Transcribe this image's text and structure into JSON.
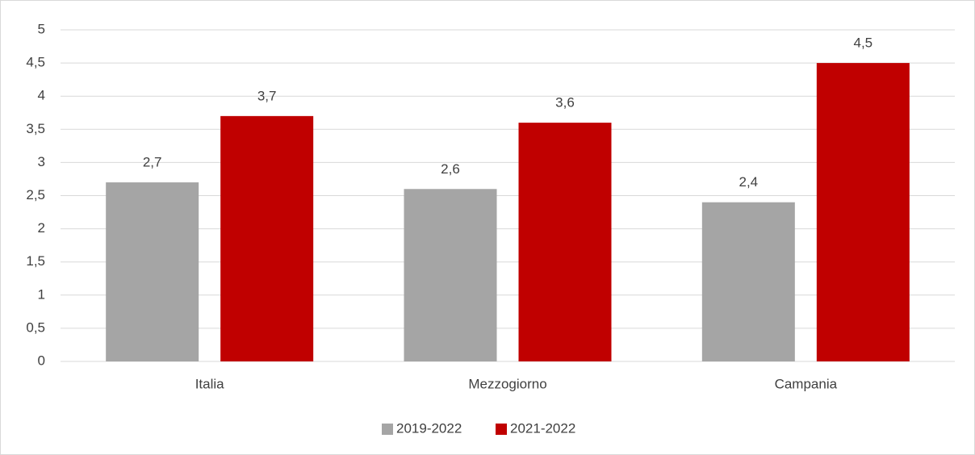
{
  "chart_data": {
    "type": "bar",
    "categories": [
      "Italia",
      "Mezzogiorno",
      "Campania"
    ],
    "series": [
      {
        "name": "2019-2022",
        "color": "#a5a5a5",
        "values": [
          2.7,
          2.6,
          2.4
        ],
        "value_labels": [
          "2,7",
          "2,6",
          "2,4"
        ]
      },
      {
        "name": "2021-2022",
        "color": "#c00000",
        "values": [
          3.7,
          3.6,
          4.5
        ],
        "value_labels": [
          "3,7",
          "3,6",
          "4,5"
        ]
      }
    ],
    "ylim": [
      0,
      5
    ],
    "yticks": [
      0,
      {
        "value": 0.5,
        "label": "0,5"
      },
      1,
      {
        "value": 1.5,
        "label": "1,5"
      },
      2,
      {
        "value": 2.5,
        "label": "2,5"
      },
      3,
      {
        "value": 3.5,
        "label": "3,5"
      },
      4,
      {
        "value": 4.5,
        "label": "4,5"
      },
      5
    ],
    "grid": true,
    "legend": "bottom"
  }
}
